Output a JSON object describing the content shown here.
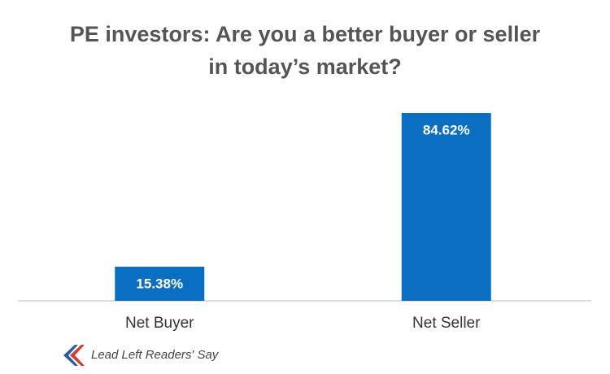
{
  "chart_data": {
    "type": "bar",
    "title": "PE investors: Are you a better buyer or seller in today’s market?",
    "categories": [
      "Net Buyer",
      "Net Seller"
    ],
    "values": [
      15.38,
      84.62
    ],
    "value_labels": [
      "15.38%",
      "84.62%"
    ],
    "color": "#0a6fc2",
    "source": "Lead Left Readers' Say"
  }
}
